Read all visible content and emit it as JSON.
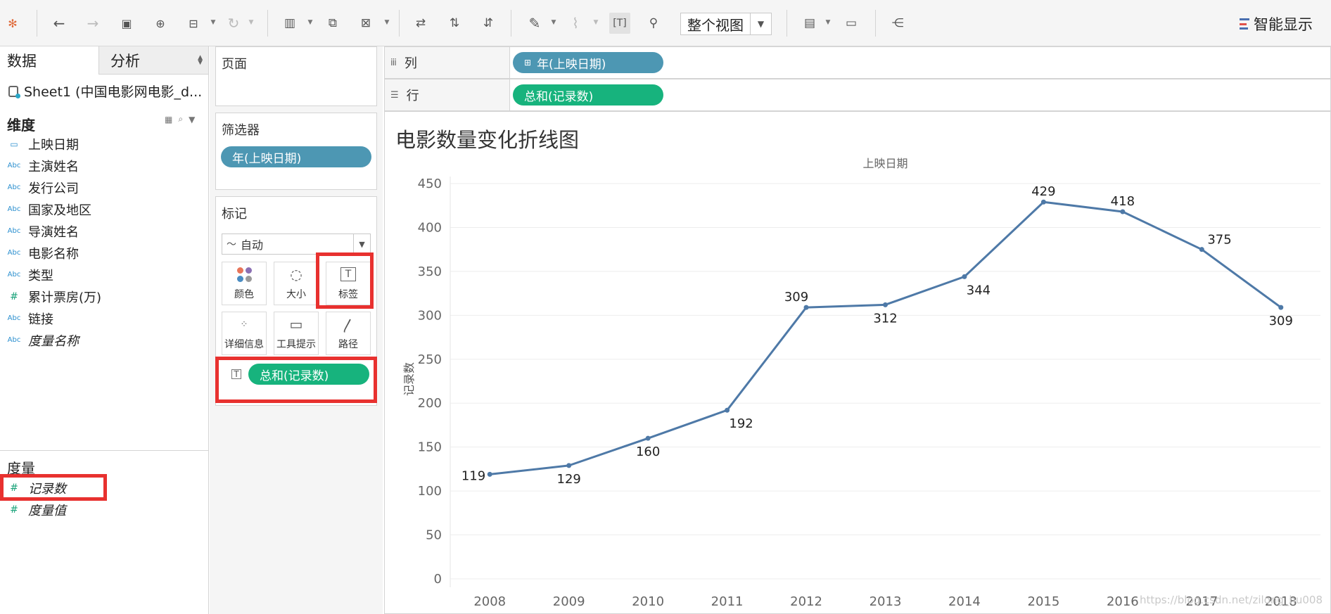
{
  "toolbar": {
    "view_mode": "整个视图",
    "show_me": "智能显示"
  },
  "data_pane": {
    "tabs": [
      "数据",
      "分析"
    ],
    "datasource": "Sheet1 (中国电影网电影_d...",
    "dimensions_header": "维度",
    "dimensions": [
      {
        "name": "上映日期",
        "type": "date"
      },
      {
        "name": "主演姓名",
        "type": "Abc"
      },
      {
        "name": "发行公司",
        "type": "Abc"
      },
      {
        "name": "国家及地区",
        "type": "Abc"
      },
      {
        "name": "导演姓名",
        "type": "Abc"
      },
      {
        "name": "电影名称",
        "type": "Abc"
      },
      {
        "name": "类型",
        "type": "Abc"
      },
      {
        "name": "累计票房(万)",
        "type": "#"
      },
      {
        "name": "链接",
        "type": "Abc"
      },
      {
        "name": "度量名称",
        "type": "Abc"
      }
    ],
    "measures_header": "度量",
    "measures": [
      {
        "name": "记录数"
      },
      {
        "name": "度量值"
      }
    ]
  },
  "pages_card": {
    "title": "页面"
  },
  "filters_card": {
    "title": "筛选器",
    "pill": "年(上映日期)"
  },
  "marks_card": {
    "title": "标记",
    "mark_type": "自动",
    "buttons": [
      "颜色",
      "大小",
      "标签",
      "详细信息",
      "工具提示",
      "路径"
    ],
    "label_pill": "总和(记录数)"
  },
  "columns_shelf": {
    "label": "列",
    "pill": "年(上映日期)"
  },
  "rows_shelf": {
    "label": "行",
    "pill": "总和(记录数)"
  },
  "sheet_title": "电影数量变化折线图",
  "chart_data": {
    "type": "line",
    "title": "电影数量变化折线图",
    "xlabel": "上映日期",
    "ylabel": "记录数",
    "categories": [
      "2008",
      "2009",
      "2010",
      "2011",
      "2012",
      "2013",
      "2014",
      "2015",
      "2016",
      "2017",
      "2018"
    ],
    "values": [
      119,
      129,
      160,
      192,
      309,
      312,
      344,
      429,
      418,
      375,
      309
    ],
    "y_ticks": [
      0,
      50,
      100,
      150,
      200,
      250,
      300,
      350,
      400,
      450
    ],
    "ylim": [
      0,
      460
    ],
    "line_color": "#4e79a7"
  },
  "watermark": "https://blog.csdn.net/zilong_hu008"
}
